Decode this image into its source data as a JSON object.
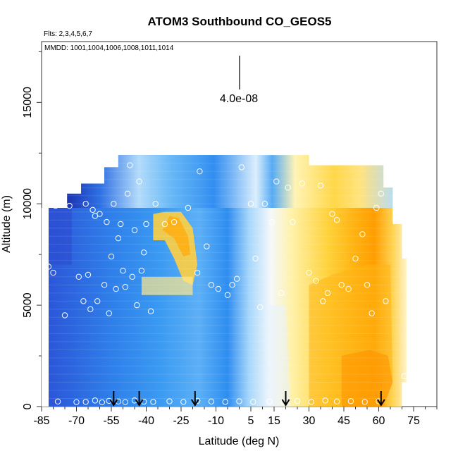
{
  "chart_data": {
    "type": "heatmap",
    "title": "ATOM3 Southbound CO_GEOS5",
    "subtitle": "Flts: 2,3,4,5,6,7",
    "annotation": "MMDD: 1001,1004,1006,1008,1011,1014",
    "scale_label": "4.0e-08",
    "xlabel": "Latitude (deg N)",
    "ylabel": "Altitude (m)",
    "xlim": [
      -85,
      85
    ],
    "ylim": [
      0,
      18000
    ],
    "x_ticks": [
      "-85",
      "-70",
      "-55",
      "-40",
      "-25",
      "-10",
      "5",
      "15",
      "30",
      "45",
      "60",
      "75"
    ],
    "x_tick_values": [
      -85,
      -70,
      -55,
      -40,
      -25,
      -10,
      5,
      15,
      30,
      45,
      60,
      75
    ],
    "y_ticks": [
      "0",
      "5000",
      "10000",
      "15000"
    ],
    "y_tick_values": [
      0,
      5000,
      10000,
      15000
    ],
    "grid": false,
    "colors": {
      "low": "#1f2fb5",
      "midlow": "#2f8cf0",
      "mid": "#f4f8fc",
      "midhigh": "#ffd84a",
      "high": "#ff9a00"
    },
    "arrow_latitudes": [
      -54,
      -43,
      -19,
      20,
      61
    ],
    "sample_points": [
      [
        -82,
        6900
      ],
      [
        -80,
        6600
      ],
      [
        -79,
        9900
      ],
      [
        -75,
        4500
      ],
      [
        -73,
        9900
      ],
      [
        -69,
        6400
      ],
      [
        -67,
        5200
      ],
      [
        -66,
        10000
      ],
      [
        -65,
        6500
      ],
      [
        -64,
        4800
      ],
      [
        -63,
        9700
      ],
      [
        -62,
        9400
      ],
      [
        -61,
        5200
      ],
      [
        -60,
        9500
      ],
      [
        -58,
        6000
      ],
      [
        -57,
        9100
      ],
      [
        -56,
        4600
      ],
      [
        -55,
        7400
      ],
      [
        -54,
        10000
      ],
      [
        -53,
        5800
      ],
      [
        -52,
        8300
      ],
      [
        -51,
        9000
      ],
      [
        -50,
        6700
      ],
      [
        -49,
        5900
      ],
      [
        -48,
        10500
      ],
      [
        -47,
        11900
      ],
      [
        -46,
        6400
      ],
      [
        -45,
        8700
      ],
      [
        -44,
        5000
      ],
      [
        -43,
        11100
      ],
      [
        -42,
        6700
      ],
      [
        -41,
        7600
      ],
      [
        -40,
        9000
      ],
      [
        -38,
        4700
      ],
      [
        -36,
        10000
      ],
      [
        -32,
        9000
      ],
      [
        -28,
        9100
      ],
      [
        -22,
        9800
      ],
      [
        -18,
        6600
      ],
      [
        -17,
        11600
      ],
      [
        -14,
        7900
      ],
      [
        -12,
        6000
      ],
      [
        -9,
        5800
      ],
      [
        -5,
        5500
      ],
      [
        -3,
        6000
      ],
      [
        -1,
        6300
      ],
      [
        1,
        11800
      ],
      [
        5,
        10000
      ],
      [
        7,
        7300
      ],
      [
        9,
        4900
      ],
      [
        11,
        10000
      ],
      [
        14,
        9100
      ],
      [
        16,
        11100
      ],
      [
        18,
        5600
      ],
      [
        21,
        10800
      ],
      [
        23,
        9100
      ],
      [
        27,
        11000
      ],
      [
        30,
        6600
      ],
      [
        33,
        6200
      ],
      [
        35,
        10900
      ],
      [
        36,
        5200
      ],
      [
        38,
        5600
      ],
      [
        40,
        9500
      ],
      [
        42,
        9200
      ],
      [
        44,
        6000
      ],
      [
        47,
        5800
      ],
      [
        50,
        7300
      ],
      [
        53,
        8500
      ],
      [
        55,
        6000
      ],
      [
        57,
        4600
      ],
      [
        59,
        9800
      ],
      [
        61,
        10500
      ],
      [
        63,
        5200
      ],
      [
        66,
        11800
      ],
      [
        68,
        11800
      ],
      [
        71,
        1500
      ],
      [
        -78,
        250
      ],
      [
        -70,
        220
      ],
      [
        -66,
        230
      ],
      [
        -62,
        300
      ],
      [
        -59,
        210
      ],
      [
        -56,
        280
      ],
      [
        -52,
        250
      ],
      [
        -49,
        220
      ],
      [
        -45,
        300
      ],
      [
        -41,
        240
      ],
      [
        -37,
        230
      ],
      [
        -30,
        260
      ],
      [
        -24,
        230
      ],
      [
        -18,
        280
      ],
      [
        -12,
        250
      ],
      [
        -6,
        230
      ],
      [
        0,
        260
      ],
      [
        6,
        230
      ],
      [
        13,
        250
      ],
      [
        19,
        230
      ],
      [
        25,
        270
      ],
      [
        31,
        230
      ],
      [
        37,
        300
      ],
      [
        42,
        250
      ],
      [
        48,
        270
      ],
      [
        54,
        230
      ],
      [
        60,
        260
      ]
    ]
  }
}
